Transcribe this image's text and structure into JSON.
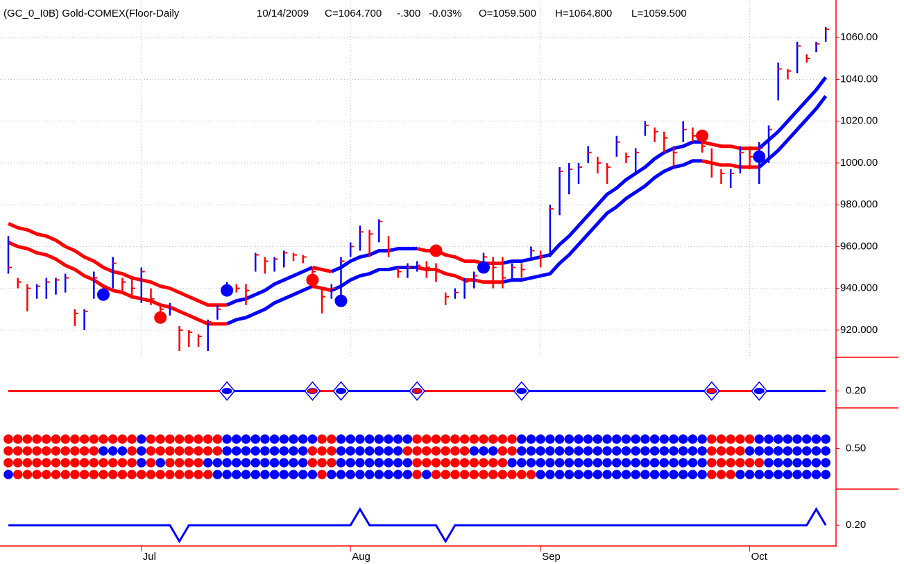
{
  "chart_data": {
    "type": "ohlc",
    "header": [
      "(GC_0_I0B) Gold-COMEX(Floor-Daily",
      "10/14/2009",
      "C=1064.700",
      "-.300",
      "-0.03%",
      "O=1059.500",
      "H=1064.800",
      "L=1059.500"
    ],
    "header_colors": [
      "#ff0000",
      "#000000",
      "#ff0000",
      "#ff0000",
      "#ff0000",
      "#ff0000",
      "#000000",
      "#000000"
    ],
    "categories": [
      null,
      null,
      null,
      null,
      null,
      null,
      null,
      null,
      null,
      null,
      null,
      null,
      null,
      null,
      "Jul",
      null,
      null,
      null,
      null,
      null,
      null,
      null,
      null,
      null,
      null,
      null,
      null,
      null,
      null,
      null,
      null,
      null,
      null,
      null,
      null,
      null,
      "Aug",
      null,
      null,
      null,
      null,
      null,
      null,
      null,
      null,
      null,
      null,
      null,
      null,
      null,
      null,
      null,
      null,
      null,
      null,
      null,
      "Sep",
      null,
      null,
      null,
      null,
      null,
      null,
      null,
      null,
      null,
      null,
      null,
      null,
      null,
      null,
      null,
      null,
      null,
      null,
      null,
      null,
      null,
      "Oct",
      null,
      null,
      null,
      null,
      null,
      null,
      null,
      null
    ],
    "ylim": [
      907,
      1078
    ],
    "yticks": [
      {
        "value": 1060,
        "label": "1060.00"
      },
      {
        "value": 1040,
        "label": "1040.00"
      },
      {
        "value": 1020,
        "label": "1020.00"
      },
      {
        "value": 1000,
        "label": "1000.00"
      },
      {
        "value": 980,
        "label": "980.000"
      },
      {
        "value": 960,
        "label": "960.000"
      },
      {
        "value": 940,
        "label": "940.000"
      },
      {
        "value": 920,
        "label": "920.000"
      }
    ],
    "grid": true,
    "up_color": "#0000ff",
    "down_color": "#ff0000",
    "ohlc": {
      "high": [
        965,
        945,
        942,
        942,
        945,
        945,
        947,
        930,
        930,
        948,
        942,
        955,
        945,
        945,
        950,
        940,
        932,
        933,
        922,
        920,
        918,
        925,
        932,
        943,
        942,
        942,
        957,
        955,
        955,
        958,
        957,
        956,
        950,
        940,
        942,
        955,
        962,
        970,
        968,
        973,
        965,
        950,
        952,
        953,
        953,
        952,
        938,
        940,
        945,
        948,
        957,
        955,
        955,
        952,
        952,
        960,
        958,
        980,
        998,
        1000,
        1000,
        1008,
        1003,
        1000,
        1013,
        1005,
        1007,
        1020,
        1017,
        1015,
        1008,
        1020,
        1017,
        1015,
        1007,
        997,
        997,
        1008,
        1008,
        1010,
        1018,
        1048,
        1045,
        1058,
        1052,
        1058,
        1065
      ],
      "low": [
        947,
        940,
        929,
        935,
        935,
        937,
        938,
        922,
        920,
        935,
        937,
        940,
        938,
        935,
        933,
        932,
        925,
        927,
        910,
        912,
        912,
        910,
        925,
        938,
        938,
        932,
        948,
        947,
        948,
        950,
        953,
        952,
        940,
        928,
        935,
        935,
        955,
        958,
        955,
        962,
        955,
        945,
        945,
        948,
        945,
        943,
        932,
        935,
        935,
        940,
        948,
        940,
        940,
        943,
        945,
        955,
        950,
        955,
        975,
        985,
        990,
        1000,
        995,
        990,
        1003,
        1000,
        995,
        1013,
        1010,
        1005,
        998,
        1010,
        1010,
        1005,
        993,
        990,
        988,
        995,
        997,
        990,
        1000,
        1030,
        1040,
        1043,
        1048,
        1053,
        1058
      ],
      "close": [
        950,
        943,
        940,
        941,
        943,
        944,
        945,
        928,
        929,
        945,
        941,
        952,
        943,
        940,
        948,
        935,
        930,
        931,
        920,
        919,
        917,
        924,
        930,
        941,
        940,
        939,
        956,
        953,
        954,
        957,
        956,
        955,
        948,
        936,
        940,
        953,
        960,
        967,
        966,
        972,
        958,
        948,
        950,
        951,
        950,
        948,
        936,
        938,
        943,
        946,
        955,
        950,
        945,
        950,
        949,
        958,
        955,
        978,
        996,
        997,
        998,
        1005,
        1000,
        998,
        1010,
        1003,
        1005,
        1018,
        1015,
        1012,
        1005,
        1016,
        1013,
        1008,
        1000,
        995,
        995,
        1005,
        1003,
        1007,
        1016,
        1045,
        1044,
        1056,
        1050,
        1057,
        1064
      ]
    },
    "bands": [
      {
        "values": [
          971,
          969,
          968,
          966,
          965,
          963,
          960,
          958,
          955,
          953,
          950,
          948,
          947,
          945,
          944,
          943,
          941,
          940,
          938,
          936,
          934,
          932,
          932,
          932,
          934,
          935,
          937,
          939,
          942,
          944,
          946,
          948,
          950,
          949,
          948,
          950,
          953,
          955,
          956,
          958,
          958,
          959,
          959,
          959,
          958,
          958,
          956,
          955,
          953,
          953,
          952,
          952,
          952,
          953,
          953,
          954,
          955,
          956,
          961,
          965,
          970,
          975,
          980,
          985,
          988,
          992,
          995,
          998,
          1002,
          1005,
          1007,
          1008,
          1010,
          1010,
          1009,
          1008,
          1008,
          1007,
          1007,
          1007,
          1011,
          1015,
          1020,
          1025,
          1030,
          1035,
          1041
        ]
      },
      {
        "values": [
          962,
          960,
          959,
          957,
          956,
          954,
          951,
          949,
          946,
          944,
          941,
          939,
          938,
          936,
          935,
          934,
          932,
          931,
          929,
          927,
          925,
          923,
          923,
          923,
          925,
          926,
          928,
          930,
          933,
          935,
          937,
          939,
          941,
          940,
          939,
          941,
          944,
          946,
          947,
          949,
          949,
          950,
          950,
          950,
          949,
          949,
          947,
          946,
          944,
          944,
          943,
          943,
          943,
          944,
          944,
          945,
          946,
          947,
          952,
          956,
          961,
          966,
          971,
          976,
          979,
          983,
          986,
          989,
          993,
          996,
          998,
          999,
          1001,
          1001,
          1000,
          999,
          999,
          998,
          998,
          998,
          1002,
          1006,
          1011,
          1016,
          1021,
          1026,
          1032
        ]
      }
    ],
    "signals": [
      {
        "color": "#0000ff",
        "values": [
          null,
          null,
          null,
          null,
          null,
          null,
          null,
          null,
          null,
          null,
          937,
          null,
          null,
          null,
          null,
          null,
          null,
          null,
          null,
          null,
          null,
          null,
          null,
          939,
          null,
          null,
          null,
          null,
          null,
          null,
          null,
          null,
          null,
          null,
          null,
          934,
          null,
          null,
          null,
          null,
          null,
          null,
          null,
          null,
          null,
          null,
          null,
          null,
          null,
          null,
          950,
          null,
          null,
          null,
          null,
          null,
          null,
          null,
          null,
          null,
          null,
          null,
          null,
          null,
          null,
          null,
          null,
          null,
          null,
          null,
          null,
          null,
          null,
          null,
          null,
          null,
          null,
          null,
          null,
          1003,
          null,
          null,
          null,
          null,
          null,
          null,
          null
        ]
      },
      {
        "color": "#ff0000",
        "values": [
          null,
          null,
          null,
          null,
          null,
          null,
          null,
          null,
          null,
          null,
          null,
          null,
          null,
          null,
          null,
          null,
          926,
          null,
          null,
          null,
          null,
          null,
          null,
          null,
          null,
          null,
          null,
          null,
          null,
          null,
          null,
          null,
          944,
          null,
          null,
          null,
          null,
          null,
          null,
          null,
          null,
          null,
          null,
          null,
          null,
          958,
          null,
          null,
          null,
          null,
          null,
          null,
          null,
          null,
          null,
          null,
          null,
          null,
          null,
          null,
          null,
          null,
          null,
          null,
          null,
          null,
          null,
          null,
          null,
          null,
          null,
          null,
          null,
          1013,
          null,
          null,
          null,
          null,
          null,
          null,
          null,
          null,
          null,
          null,
          null,
          null,
          null
        ]
      }
    ],
    "panels": [
      {
        "ylim": [
          0.1,
          0.4
        ],
        "yticks": [
          {
            "value": 0.2,
            "label": "0.20"
          }
        ],
        "values": [
          null,
          null,
          null,
          null,
          null,
          null,
          null,
          null,
          null,
          null,
          null,
          null,
          null,
          null,
          null,
          null,
          null,
          null,
          null,
          null,
          null,
          null,
          null,
          0.2,
          null,
          null,
          null,
          null,
          null,
          null,
          null,
          null,
          0.2,
          null,
          null,
          0.2,
          null,
          null,
          null,
          null,
          null,
          null,
          null,
          0.2,
          null,
          null,
          null,
          null,
          null,
          null,
          null,
          null,
          null,
          null,
          0.2,
          null,
          null,
          null,
          null,
          null,
          null,
          null,
          null,
          null,
          null,
          null,
          null,
          null,
          null,
          null,
          null,
          null,
          null,
          null,
          0.2,
          null,
          null,
          null,
          null,
          0.2,
          null,
          null,
          null,
          null,
          null,
          null,
          null
        ],
        "line_colors": [
          "#ff0000",
          "#0000ff"
        ]
      },
      {
        "ylim": [
          0,
          1
        ],
        "yticks": [
          {
            "value": 0.5,
            "label": "0.50"
          }
        ],
        "rows": [
          "rrrrrrrrrrrrrrbrrrrrrrrbbbbbbbbbbrrbbbbbbbbrrrrrrrrrrrbbbbbbbbbbbbbbbbbbbbrrrrrbbbbbbbb",
          "rrrrrrrrrrbbbrbrrrrrrrrbbbbbbbbbrrrbbbbbbbrrrrrrrbbbrrbbbbbbbbbbbbbbbbbbbbrrrrbbbbbbbbb",
          "rrrrrrrrrrrrrrbrbrrrrbbbbbbbbbbbrrrbbbbbbbbrrrrrrrrrrbbbbbbbbbbbbbbbbbbbbbrrrrrrbbbbbbb",
          "brrrrrrrrrrrrrrrrrrrrrbbbbbbbbbbbrbbbbbbbbbrbrrrrrrrrrrrbbbbbbbbbbbbbbbbbbrrrbbbbbbbbbb"
        ]
      },
      {
        "ylim": [
          -0.04,
          0.65
        ],
        "yticks": [
          {
            "value": 0.2,
            "label": "0.20"
          }
        ],
        "color": "#0000ff",
        "values": [
          0.2,
          0.2,
          0.2,
          0.2,
          0.2,
          0.2,
          0.2,
          0.2,
          0.2,
          0.2,
          0.2,
          0.2,
          0.2,
          0.2,
          0.2,
          0.2,
          0.2,
          0.2,
          0,
          0.2,
          0.2,
          0.2,
          0.2,
          0.2,
          0.2,
          0.2,
          0.2,
          0.2,
          0.2,
          0.2,
          0.2,
          0.2,
          0.2,
          0.2,
          0.2,
          0.2,
          0.2,
          0.4,
          0.2,
          0.2,
          0.2,
          0.2,
          0.2,
          0.2,
          0.2,
          0.2,
          0,
          0.2,
          0.2,
          0.2,
          0.2,
          0.2,
          0.2,
          0.2,
          0.2,
          0.2,
          0.2,
          0.2,
          0.2,
          0.2,
          0.2,
          0.2,
          0.2,
          0.2,
          0.2,
          0.2,
          0.2,
          0.2,
          0.2,
          0.2,
          0.2,
          0.2,
          0.2,
          0.2,
          0.2,
          0.2,
          0.2,
          0.2,
          0.2,
          0.2,
          0.2,
          0.2,
          0.2,
          0.2,
          0.2,
          0.4,
          0.2
        ]
      }
    ]
  }
}
